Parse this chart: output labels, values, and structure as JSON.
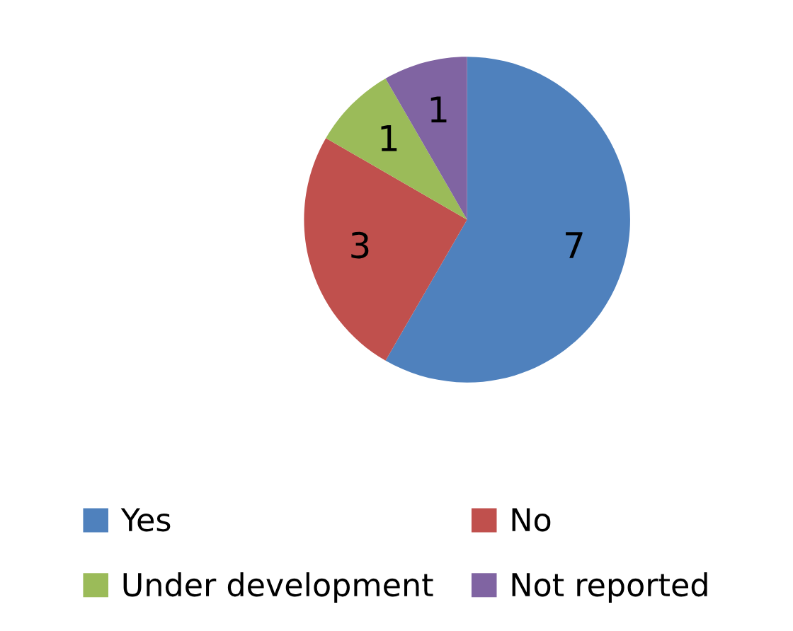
{
  "chart_data": {
    "type": "pie",
    "categories": [
      "Yes",
      "No",
      "Under development",
      "Not reported"
    ],
    "values": [
      7,
      3,
      1,
      1
    ],
    "colors": [
      "#4f81bd",
      "#c0504d",
      "#9bbb59",
      "#8064a2"
    ],
    "data_labels": true,
    "legend": "bottom"
  }
}
